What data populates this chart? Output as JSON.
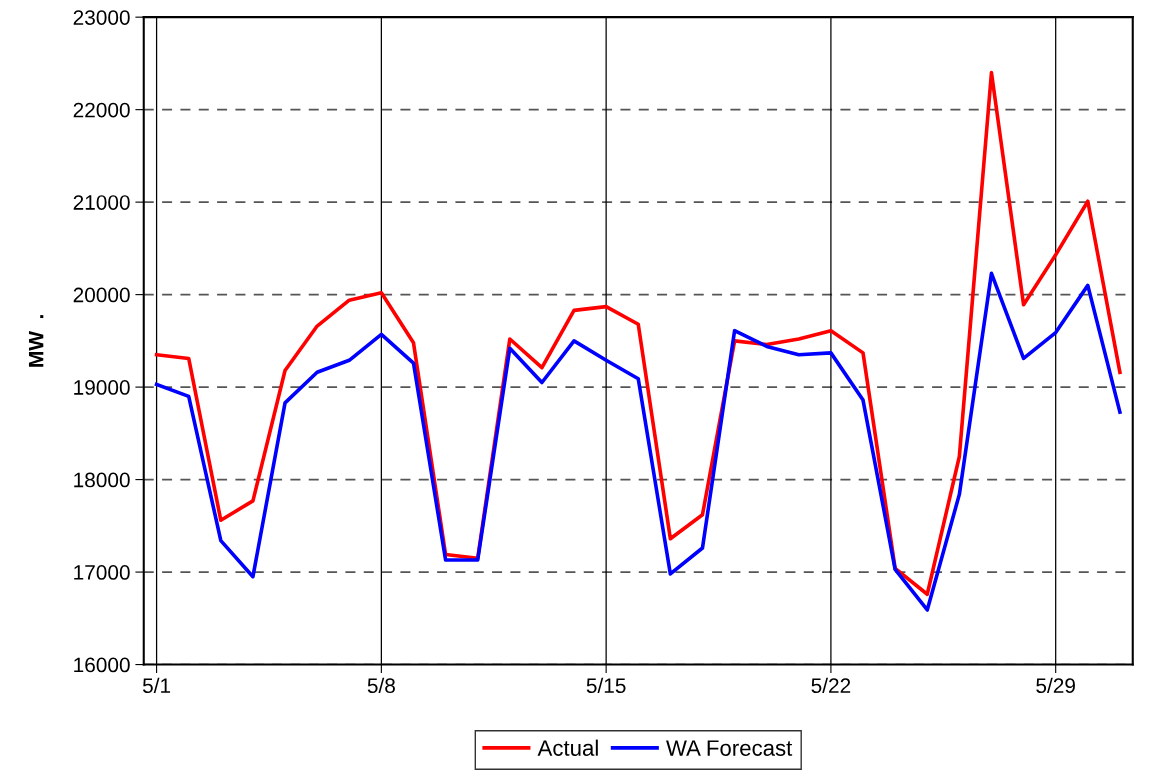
{
  "chart_data": {
    "type": "line",
    "ylabel": "MW  .",
    "categories": [
      "5/1",
      null,
      null,
      null,
      null,
      null,
      null,
      "5/8",
      null,
      null,
      null,
      null,
      null,
      null,
      "5/15",
      null,
      null,
      null,
      null,
      null,
      null,
      "5/22",
      null,
      null,
      null,
      null,
      null,
      null,
      "5/29",
      null,
      null
    ],
    "series": [
      {
        "name": "Actual",
        "color": "#ff0000",
        "values": [
          19350,
          19310,
          17560,
          17770,
          19180,
          19660,
          19940,
          20020,
          19480,
          17190,
          17150,
          19520,
          19210,
          19830,
          19870,
          19680,
          17360,
          17620,
          19500,
          19460,
          19520,
          19610,
          19370,
          17040,
          16760,
          18250,
          22400,
          19890,
          20430,
          21010,
          19160
        ]
      },
      {
        "name": "WA Forecast",
        "color": "#0000ff",
        "values": [
          19030,
          18900,
          17340,
          16950,
          18830,
          19160,
          19290,
          19570,
          19260,
          17130,
          17130,
          19420,
          19050,
          19500,
          19290,
          19090,
          16980,
          17260,
          19610,
          19440,
          19350,
          19370,
          18860,
          17030,
          16590,
          17840,
          20230,
          19310,
          19590,
          20100,
          18730
        ]
      }
    ],
    "ylim": [
      16000,
      23000
    ],
    "yticks": [
      16000,
      17000,
      18000,
      19000,
      20000,
      21000,
      22000,
      23000
    ],
    "grid": true,
    "legend": "bottom",
    "marker": "none",
    "line_style": "solid"
  }
}
